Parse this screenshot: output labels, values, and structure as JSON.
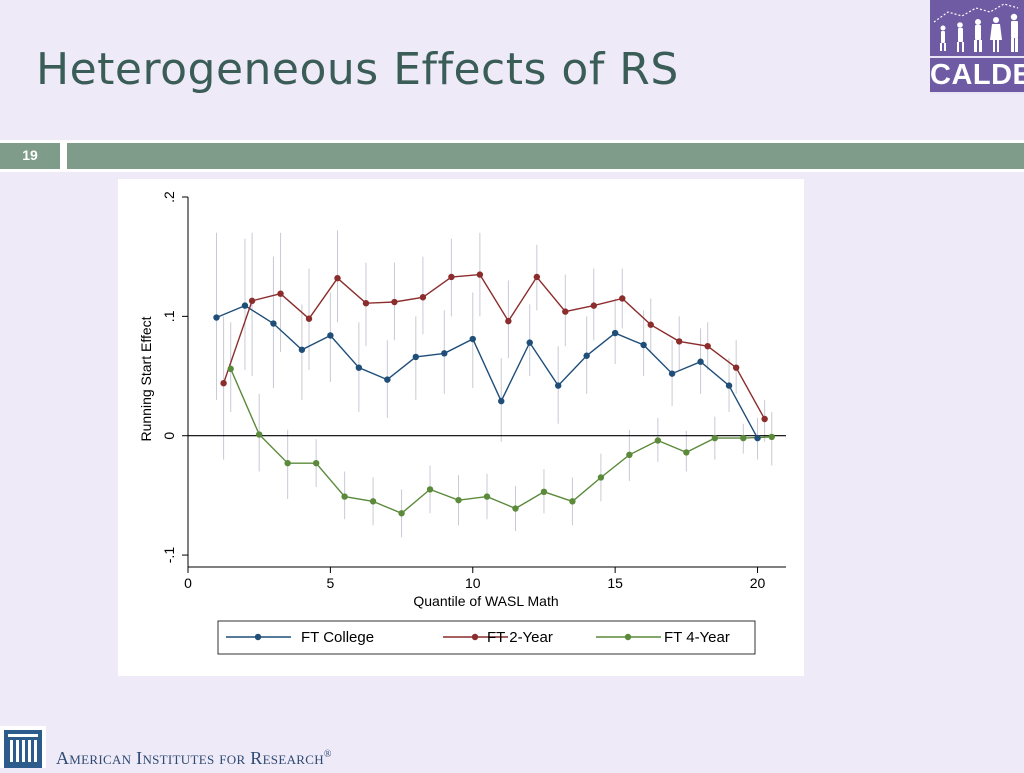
{
  "slide": {
    "title": "Heterogeneous Effects of RS",
    "slide_number": "19",
    "logo_text": "CALDER",
    "footer_text": "American Institutes for Research",
    "footer_mark": "®"
  },
  "chart_data": {
    "type": "line",
    "title": "",
    "xlabel": "Quantile of WASL Math",
    "ylabel": "Running Start Effect",
    "xlim": [
      0,
      21
    ],
    "ylim": [
      -0.11,
      0.2
    ],
    "xticks": [
      "0",
      "5",
      "10",
      "15",
      "20"
    ],
    "yticks": [
      "-.1",
      "0",
      ".1",
      ".2"
    ],
    "legend_position": "bottom",
    "reference_line_y": 0,
    "series": [
      {
        "name": "FT College",
        "color": "#1f4e79",
        "x": [
          1,
          2,
          3,
          4,
          5,
          6,
          7,
          8,
          9,
          10,
          11,
          12,
          13,
          14,
          15,
          16,
          17,
          18,
          19,
          20
        ],
        "values": [
          0.099,
          0.109,
          0.094,
          0.072,
          0.084,
          0.057,
          0.047,
          0.066,
          0.069,
          0.081,
          0.029,
          0.078,
          0.042,
          0.067,
          0.086,
          0.076,
          0.052,
          0.062,
          0.042,
          -0.002
        ],
        "ci_low": [
          0.03,
          0.055,
          0.04,
          0.03,
          0.045,
          0.02,
          0.015,
          0.03,
          0.035,
          0.04,
          -0.005,
          0.05,
          0.01,
          0.035,
          0.06,
          0.05,
          0.025,
          0.035,
          0.02,
          -0.02
        ],
        "ci_high": [
          0.17,
          0.165,
          0.15,
          0.11,
          0.12,
          0.095,
          0.08,
          0.1,
          0.105,
          0.12,
          0.065,
          0.11,
          0.075,
          0.1,
          0.115,
          0.105,
          0.08,
          0.09,
          0.065,
          0.015
        ]
      },
      {
        "name": "FT 2-Year",
        "color": "#8c2d2d",
        "x": [
          1.25,
          2.25,
          3.25,
          4.25,
          5.25,
          6.25,
          7.25,
          8.25,
          9.25,
          10.25,
          11.25,
          12.25,
          13.25,
          14.25,
          15.25,
          16.25,
          17.25,
          18.25,
          19.25,
          20.25
        ],
        "values": [
          0.044,
          0.113,
          0.119,
          0.098,
          0.132,
          0.111,
          0.112,
          0.116,
          0.133,
          0.135,
          0.096,
          0.133,
          0.104,
          0.109,
          0.115,
          0.093,
          0.079,
          0.075,
          0.057,
          0.014
        ],
        "ci_low": [
          -0.02,
          0.05,
          0.07,
          0.055,
          0.095,
          0.075,
          0.08,
          0.085,
          0.1,
          0.1,
          0.065,
          0.105,
          0.075,
          0.08,
          0.09,
          0.07,
          0.055,
          0.055,
          0.035,
          -0.005
        ],
        "ci_high": [
          0.1,
          0.17,
          0.17,
          0.14,
          0.172,
          0.145,
          0.145,
          0.15,
          0.165,
          0.17,
          0.13,
          0.16,
          0.135,
          0.14,
          0.14,
          0.115,
          0.1,
          0.095,
          0.08,
          0.03
        ]
      },
      {
        "name": "FT 4-Year",
        "color": "#5b8a3a",
        "x": [
          1.5,
          2.5,
          3.5,
          4.5,
          5.5,
          6.5,
          7.5,
          8.5,
          9.5,
          10.5,
          11.5,
          12.5,
          13.5,
          14.5,
          15.5,
          16.5,
          17.5,
          18.5,
          19.5,
          20.5
        ],
        "values": [
          0.056,
          0.001,
          -0.023,
          -0.023,
          -0.051,
          -0.055,
          -0.065,
          -0.045,
          -0.054,
          -0.051,
          -0.061,
          -0.047,
          -0.055,
          -0.035,
          -0.016,
          -0.004,
          -0.014,
          -0.002,
          -0.002,
          -0.001
        ],
        "ci_low": [
          0.02,
          -0.03,
          -0.053,
          -0.043,
          -0.07,
          -0.075,
          -0.085,
          -0.065,
          -0.075,
          -0.07,
          -0.08,
          -0.065,
          -0.075,
          -0.055,
          -0.038,
          -0.022,
          -0.03,
          -0.02,
          -0.015,
          -0.025
        ],
        "ci_high": [
          0.095,
          0.035,
          0.005,
          -0.003,
          -0.03,
          -0.035,
          -0.045,
          -0.025,
          -0.033,
          -0.032,
          -0.042,
          -0.028,
          -0.035,
          -0.015,
          0.005,
          0.015,
          0.004,
          0.016,
          0.01,
          0.02
        ]
      }
    ]
  }
}
